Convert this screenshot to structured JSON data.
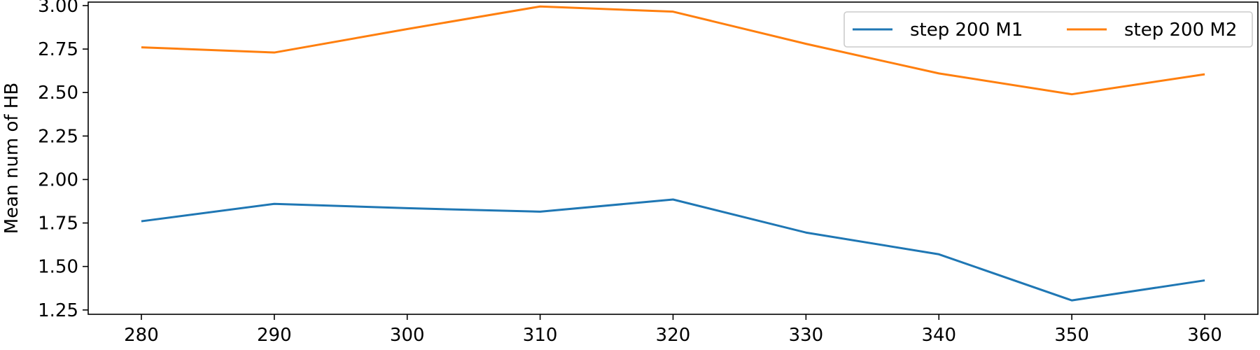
{
  "chart_data": {
    "type": "line",
    "title": "",
    "xlabel": "",
    "ylabel": "Mean num of HB",
    "x": [
      280,
      290,
      300,
      310,
      320,
      330,
      340,
      350,
      360
    ],
    "xlim": [
      276,
      364
    ],
    "ylim": [
      1.225,
      3.02
    ],
    "xticks": [
      280,
      290,
      300,
      310,
      320,
      330,
      340,
      350,
      360
    ],
    "yticks": [
      1.25,
      1.5,
      1.75,
      2.0,
      2.25,
      2.5,
      2.75,
      3.0
    ],
    "ytick_labels": [
      "1.25",
      "1.50",
      "1.75",
      "2.00",
      "2.25",
      "2.50",
      "2.75",
      "3.00"
    ],
    "grid": false,
    "legend": {
      "position": "top-right",
      "columns": 2
    },
    "series": [
      {
        "name": "step 200 M1",
        "color": "#1f77b4",
        "values": [
          1.76,
          1.86,
          1.835,
          1.815,
          1.885,
          1.695,
          1.57,
          1.305,
          1.42
        ]
      },
      {
        "name": "step 200 M2",
        "color": "#ff7f0e",
        "values": [
          2.76,
          2.73,
          2.865,
          2.995,
          2.965,
          2.78,
          2.61,
          2.49,
          2.605
        ]
      }
    ]
  }
}
